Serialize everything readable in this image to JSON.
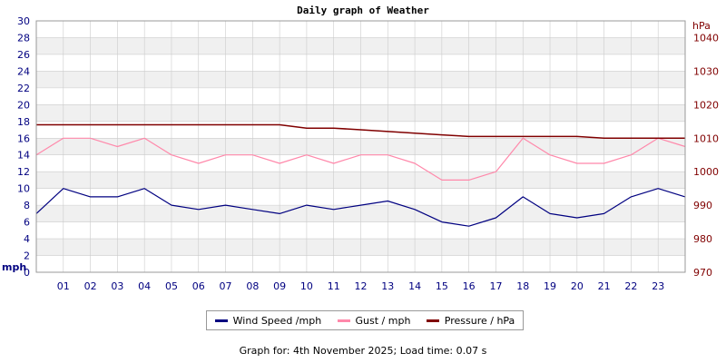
{
  "chart_data": {
    "type": "line",
    "title": "Daily graph of Weather",
    "y_left_label": "mph",
    "y_right_label": "hPa",
    "y_left_ticks": [
      "0",
      "2",
      "4",
      "6",
      "8",
      "10",
      "12",
      "14",
      "16",
      "18",
      "20",
      "22",
      "24",
      "26",
      "28",
      "30"
    ],
    "y_right_ticks": [
      "970",
      "980",
      "990",
      "1000",
      "1010",
      "1020",
      "1030",
      "1040"
    ],
    "x_ticks": [
      "01",
      "02",
      "03",
      "04",
      "05",
      "06",
      "07",
      "08",
      "09",
      "10",
      "11",
      "12",
      "13",
      "14",
      "15",
      "16",
      "17",
      "18",
      "19",
      "20",
      "21",
      "22",
      "23"
    ],
    "ylim_left": [
      0,
      30
    ],
    "ylim_right": [
      970,
      1045
    ],
    "xlim": [
      0,
      24
    ],
    "grid": true,
    "legend_position": "bottom",
    "x": [
      0,
      1,
      2,
      3,
      4,
      5,
      6,
      7,
      8,
      9,
      10,
      11,
      12,
      13,
      14,
      15,
      16,
      17,
      18,
      19,
      20,
      21,
      22,
      23,
      24
    ],
    "series": [
      {
        "name": "Wind Speed /mph",
        "axis": "left",
        "color": "#000080",
        "values": [
          7,
          10,
          9,
          9,
          10,
          8,
          7.5,
          8,
          7.5,
          7,
          8,
          7.5,
          8,
          8.5,
          7.5,
          6,
          5.5,
          6.5,
          9,
          7,
          6.5,
          7,
          9,
          10,
          9
        ]
      },
      {
        "name": "Gust / mph",
        "axis": "left",
        "color": "#ff88aa",
        "values": [
          14,
          16,
          16,
          15,
          16,
          14,
          13,
          14,
          14,
          13,
          14,
          13,
          14,
          14,
          13,
          11,
          11,
          12,
          16,
          14,
          13,
          13,
          14,
          16,
          15
        ]
      },
      {
        "name": "Pressure / hPa",
        "axis": "right",
        "color": "#800000",
        "values": [
          1014,
          1014,
          1014,
          1014,
          1014,
          1014,
          1014,
          1014,
          1014,
          1014,
          1013,
          1013,
          1012.5,
          1012,
          1011.5,
          1011,
          1010.5,
          1010.5,
          1010.5,
          1010.5,
          1010.5,
          1010,
          1010,
          1010,
          1010
        ]
      }
    ]
  },
  "legend": {
    "items": [
      "Wind Speed /mph",
      "Gust / mph",
      "Pressure / hPa"
    ]
  },
  "footer": {
    "text": "Graph for: 4th November 2025; Load time: 0.07 s"
  },
  "colors": {
    "left_axis": "#000080",
    "right_axis": "#800000",
    "band": "#f0f0f0",
    "grid": "#cccccc"
  }
}
